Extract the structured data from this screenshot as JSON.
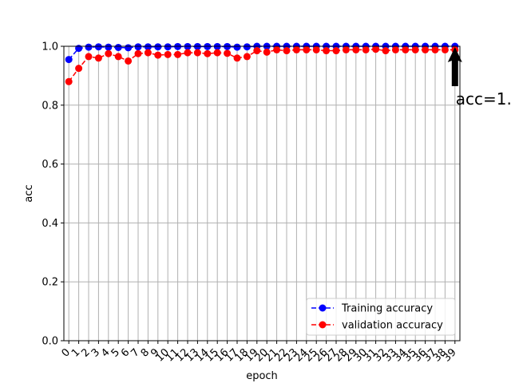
{
  "chart_data": {
    "type": "line",
    "xlabel": "epoch",
    "ylabel": "acc",
    "xlim": [
      -0.5,
      39.5
    ],
    "ylim": [
      0.0,
      1.0
    ],
    "grid": true,
    "legend_position": "lower right",
    "x": [
      0,
      1,
      2,
      3,
      4,
      5,
      6,
      7,
      8,
      9,
      10,
      11,
      12,
      13,
      14,
      15,
      16,
      17,
      18,
      19,
      20,
      21,
      22,
      23,
      24,
      25,
      26,
      27,
      28,
      29,
      30,
      31,
      32,
      33,
      34,
      35,
      36,
      37,
      38,
      39
    ],
    "x_tick_labels": [
      "0",
      "1",
      "2",
      "3",
      "4",
      "5",
      "6",
      "7",
      "8",
      "9",
      "10",
      "11",
      "12",
      "13",
      "14",
      "15",
      "16",
      "17",
      "18",
      "19",
      "20",
      "21",
      "22",
      "23",
      "24",
      "25",
      "26",
      "27",
      "28",
      "29",
      "30",
      "31",
      "32",
      "33",
      "34",
      "35",
      "36",
      "37",
      "38",
      "39"
    ],
    "y_tick_labels": [
      "0.0",
      "0.2",
      "0.4",
      "0.6",
      "0.8",
      "1.0"
    ],
    "y_ticks": [
      0.0,
      0.2,
      0.4,
      0.6,
      0.8,
      1.0
    ],
    "series": [
      {
        "name": "Training accuracy",
        "color": "#0000ff",
        "style": "dashed",
        "marker": "circle",
        "values": [
          0.955,
          0.993,
          0.997,
          0.998,
          0.997,
          0.996,
          0.995,
          0.998,
          0.998,
          0.998,
          0.998,
          0.999,
          0.999,
          0.999,
          0.999,
          0.999,
          0.999,
          0.997,
          0.998,
          1.0,
          1.0,
          1.0,
          1.0,
          1.0,
          1.0,
          1.0,
          1.0,
          1.0,
          1.0,
          1.0,
          1.0,
          1.0,
          1.0,
          1.0,
          1.0,
          1.0,
          1.0,
          1.0,
          1.0,
          1.0
        ]
      },
      {
        "name": "validation accuracy",
        "color": "#ff0000",
        "style": "dashed",
        "marker": "circle",
        "values": [
          0.88,
          0.925,
          0.965,
          0.96,
          0.975,
          0.965,
          0.95,
          0.975,
          0.978,
          0.97,
          0.972,
          0.972,
          0.978,
          0.978,
          0.975,
          0.978,
          0.976,
          0.96,
          0.965,
          0.985,
          0.98,
          0.988,
          0.985,
          0.988,
          0.988,
          0.988,
          0.985,
          0.985,
          0.988,
          0.988,
          0.988,
          0.99,
          0.985,
          0.988,
          0.988,
          0.988,
          0.988,
          0.988,
          0.988,
          0.988
        ]
      }
    ],
    "annotation": {
      "text": "acc=1.",
      "arrow_target_x": 39,
      "arrow_target_y": 1.0,
      "arrow_color": "#000000"
    }
  }
}
